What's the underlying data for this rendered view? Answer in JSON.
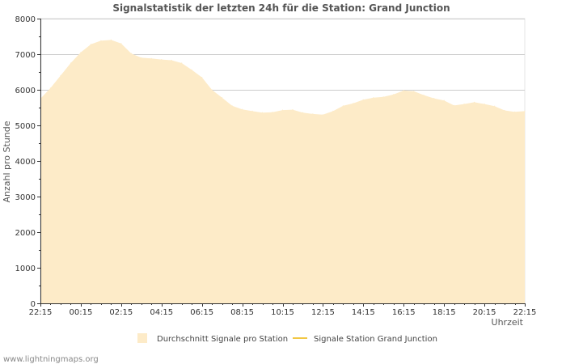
{
  "chart_data": {
    "type": "area",
    "title": "Signalstatistik der letzten 24h für die Station: Grand Junction",
    "xlabel": "Uhrzeit",
    "ylabel": "Anzahl pro Stunde",
    "ylim": [
      0,
      8000
    ],
    "yticks": [
      0,
      1000,
      2000,
      3000,
      4000,
      5000,
      6000,
      7000,
      8000
    ],
    "xlim": [
      0,
      24
    ],
    "xticks": [
      {
        "pos": 0,
        "label": "22:15"
      },
      {
        "pos": 2,
        "label": "00:15"
      },
      {
        "pos": 4,
        "label": "02:15"
      },
      {
        "pos": 6,
        "label": "04:15"
      },
      {
        "pos": 8,
        "label": "06:15"
      },
      {
        "pos": 10,
        "label": "08:15"
      },
      {
        "pos": 12,
        "label": "10:15"
      },
      {
        "pos": 14,
        "label": "12:15"
      },
      {
        "pos": 16,
        "label": "14:15"
      },
      {
        "pos": 18,
        "label": "16:15"
      },
      {
        "pos": 20,
        "label": "18:15"
      },
      {
        "pos": 22,
        "label": "20:15"
      },
      {
        "pos": 24,
        "label": "22:15"
      }
    ],
    "grid": true,
    "legend_position": "bottom",
    "series": [
      {
        "name": "Durchschnitt Signale pro Station",
        "style": "area",
        "color": "#fdebc8",
        "x": [
          0,
          0.5,
          1,
          1.5,
          2,
          2.5,
          3,
          3.5,
          4,
          4.5,
          5,
          5.5,
          6,
          6.5,
          7,
          7.5,
          8,
          8.5,
          9,
          9.5,
          10,
          10.5,
          11,
          11.5,
          12,
          12.5,
          13,
          13.5,
          14,
          14.5,
          15,
          15.5,
          16,
          16.5,
          17,
          17.5,
          18,
          18.5,
          19,
          19.5,
          20,
          20.5,
          21,
          21.5,
          22,
          22.5,
          23,
          23.5,
          24
        ],
        "values": [
          5750,
          6050,
          6400,
          6750,
          7050,
          7280,
          7380,
          7400,
          7300,
          7020,
          6900,
          6880,
          6850,
          6830,
          6750,
          6560,
          6350,
          6000,
          5780,
          5550,
          5450,
          5400,
          5360,
          5370,
          5430,
          5440,
          5360,
          5320,
          5300,
          5400,
          5550,
          5620,
          5720,
          5780,
          5800,
          5870,
          5980,
          5960,
          5850,
          5760,
          5700,
          5560,
          5600,
          5650,
          5600,
          5540,
          5420,
          5380,
          5400
        ]
      },
      {
        "name": "Signale Station Grand Junction",
        "style": "line",
        "color": "#f2c744",
        "x": [],
        "values": []
      }
    ]
  },
  "watermark": "www.lightningmaps.org"
}
